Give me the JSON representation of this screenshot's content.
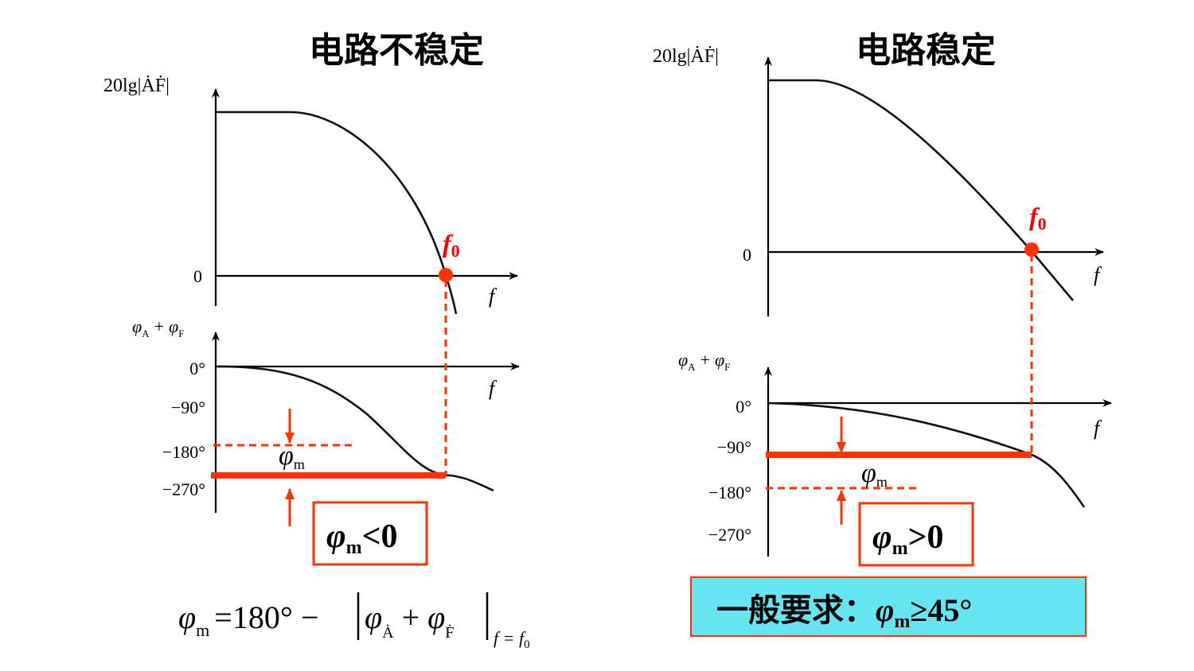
{
  "left": {
    "title": "电路不稳定",
    "mag_ylabel": "20lg|ȦḞ|",
    "mag_zero": "0",
    "f_label": "f",
    "f0_label": "f",
    "f0_sub": "0",
    "phase_ylabel_main": "φ",
    "phase_ylabel_sub_a": "A",
    "phase_ylabel_plus": "+",
    "phase_ylabel_sub_f": "F",
    "phase_ticks": [
      "0°",
      "−90°",
      "−180°",
      "−270°"
    ],
    "phi_m_label": "φ",
    "phi_m_sub": "m",
    "box_text_phi": "φ",
    "box_text_sub": "m",
    "box_text_rel": "<0"
  },
  "right": {
    "title": "电路稳定",
    "mag_ylabel": "20lg|ȦḞ|",
    "mag_zero": "0",
    "f_label": "f",
    "f0_label": "f",
    "f0_sub": "0",
    "phase_ylabel_main": "φ",
    "phase_ylabel_sub_a": "A",
    "phase_ylabel_plus": "+",
    "phase_ylabel_sub_f": "F",
    "phase_ticks": [
      "0°",
      "−90°",
      "−180°",
      "−270°"
    ],
    "phi_m_label": "φ",
    "phi_m_sub": "m",
    "box_text_phi": "φ",
    "box_text_sub": "m",
    "box_text_rel": ">0"
  },
  "formula": {
    "lhs": "φ",
    "lhs_sub": "m",
    "eq": "=180° −",
    "a": "φ",
    "a_sub": "Ȧ",
    "plus": "+",
    "f": "φ",
    "f_sub": "Ḟ",
    "cond": "f = f",
    "cond_sub": "0"
  },
  "requirement": {
    "prefix": "一般要求：",
    "phi": "φ",
    "sub": "m",
    "rest": "≥45°"
  },
  "colors": {
    "accent": "#ff3300",
    "box_fill": "#66e6f0",
    "f0_text": "#ff0000"
  }
}
